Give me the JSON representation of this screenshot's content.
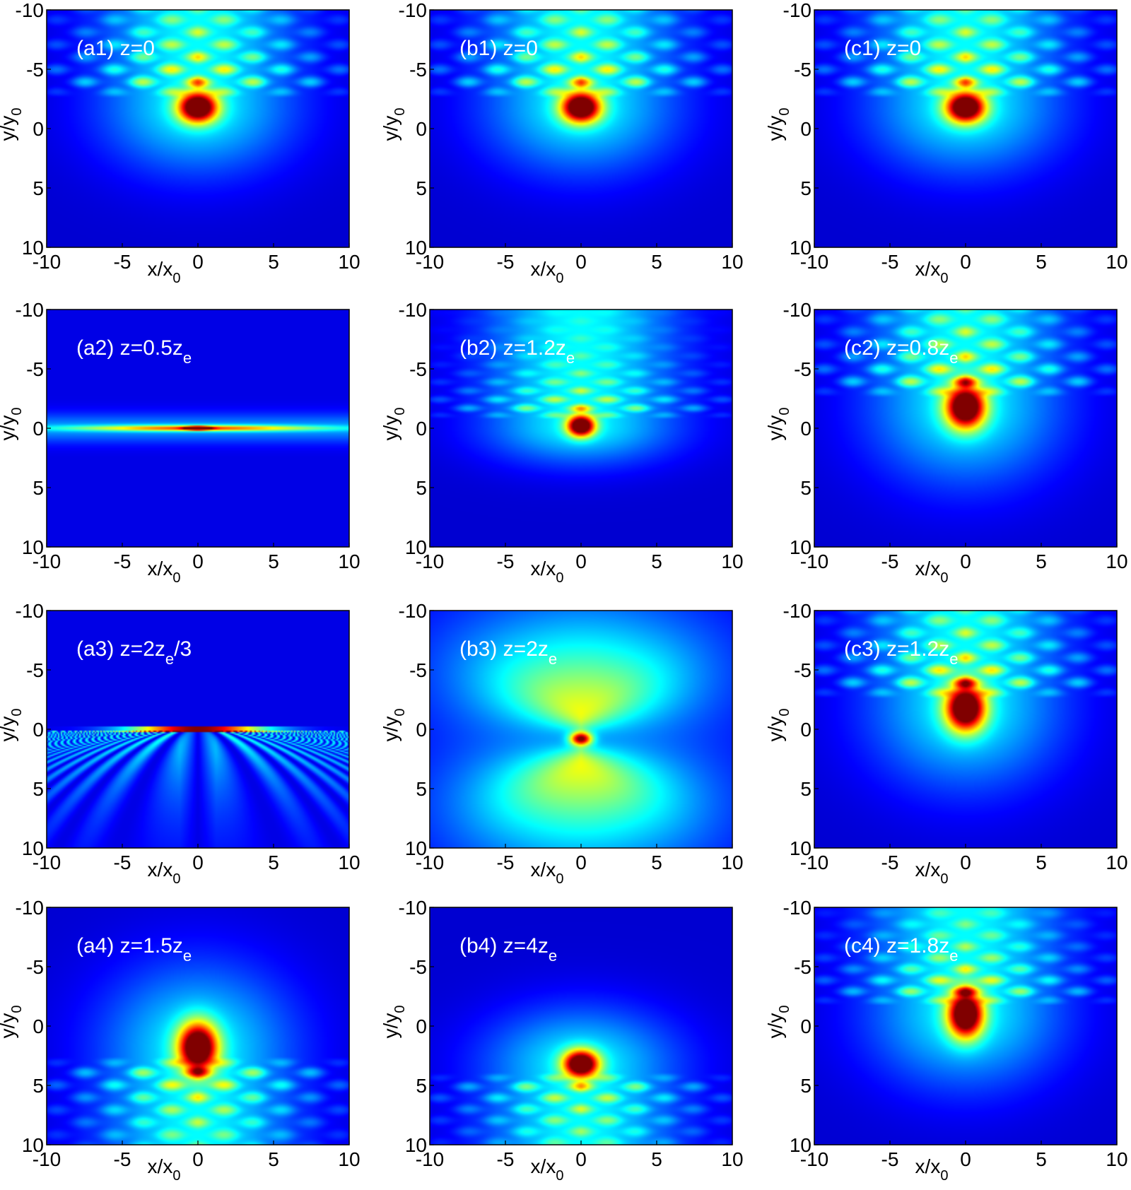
{
  "chart_data": {
    "type": "heatmap",
    "colormap": "jet",
    "grid": false,
    "layout": {
      "rows": 4,
      "cols": 3
    },
    "xlabel": {
      "main": "x/x",
      "sub": "0"
    },
    "ylabel": {
      "main": "y/y",
      "sub": "0"
    },
    "xlim": [
      -10,
      10
    ],
    "ylim": [
      -10,
      10
    ],
    "y_axis_direction": "down",
    "xticks": [
      "-10",
      "-5",
      "0",
      "5",
      "10"
    ],
    "yticks": [
      "-10",
      "-5",
      "0",
      "5",
      "10"
    ],
    "panels": [
      {
        "id": "a1",
        "label": "(a1) z=0",
        "label_parts": {
          "tag": "(a1)",
          "pre": "z=0",
          "sub": "",
          "post": ""
        },
        "pattern": "airy",
        "orientation": "up",
        "center_y": -1.8,
        "spread": 1.0,
        "fringe_strength": 1.0
      },
      {
        "id": "b1",
        "label": "(b1) z=0",
        "label_parts": {
          "tag": "(b1)",
          "pre": "z=0",
          "sub": "",
          "post": ""
        },
        "pattern": "airy",
        "orientation": "up",
        "center_y": -1.8,
        "spread": 1.0,
        "fringe_strength": 1.0
      },
      {
        "id": "c1",
        "label": "(c1) z=0",
        "label_parts": {
          "tag": "(c1)",
          "pre": "z=0",
          "sub": "",
          "post": ""
        },
        "pattern": "airy",
        "orientation": "up",
        "center_y": -1.8,
        "spread": 1.0,
        "fringe_strength": 1.0
      },
      {
        "id": "a2",
        "label": "(a2) z=0.5ze",
        "label_parts": {
          "tag": "(a2)",
          "pre": "z=0.5z",
          "sub": "e",
          "post": ""
        },
        "pattern": "line",
        "line_y": 0.0,
        "line_halfwidth": 1.2
      },
      {
        "id": "b2",
        "label": "(b2) z=1.2ze",
        "label_parts": {
          "tag": "(b2)",
          "pre": "z=1.2z",
          "sub": "e",
          "post": ""
        },
        "pattern": "airy",
        "orientation": "up",
        "center_y": -0.2,
        "spread": 0.7,
        "fringe_strength": 0.9
      },
      {
        "id": "c2",
        "label": "(c2) z=0.8ze",
        "label_parts": {
          "tag": "(c2)",
          "pre": "z=0.8z",
          "sub": "e",
          "post": ""
        },
        "pattern": "airy",
        "orientation": "up",
        "center_y": -1.8,
        "spread": 1.0,
        "fringe_strength": 1.0,
        "elongate": 1.4
      },
      {
        "id": "a3",
        "label": "(a3) z=2ze/3",
        "label_parts": {
          "tag": "(a3)",
          "pre": "z=2z",
          "sub": "e",
          "post": "/3"
        },
        "pattern": "fan",
        "line_y": 0.0,
        "line_halfwidth": 2.5
      },
      {
        "id": "b3",
        "label": "(b3) z=2ze",
        "label_parts": {
          "tag": "(b3)",
          "pre": "z=2z",
          "sub": "e",
          "post": ""
        },
        "pattern": "focus",
        "center_y": 0.8
      },
      {
        "id": "c3",
        "label": "(c3) z=1.2ze",
        "label_parts": {
          "tag": "(c3)",
          "pre": "z=1.2z",
          "sub": "e",
          "post": ""
        },
        "pattern": "airy",
        "orientation": "up",
        "center_y": -1.8,
        "spread": 1.0,
        "fringe_strength": 1.0,
        "elongate": 1.5
      },
      {
        "id": "a4",
        "label": "(a4) z=1.5ze",
        "label_parts": {
          "tag": "(a4)",
          "pre": "z=1.5z",
          "sub": "e",
          "post": ""
        },
        "pattern": "airy",
        "orientation": "down",
        "center_y": 1.8,
        "spread": 1.0,
        "fringe_strength": 0.9,
        "elongate": 1.6
      },
      {
        "id": "b4",
        "label": "(b4) z=4ze",
        "label_parts": {
          "tag": "(b4)",
          "pre": "z=4z",
          "sub": "e",
          "post": ""
        },
        "pattern": "airy",
        "orientation": "down",
        "center_y": 3.2,
        "spread": 0.9,
        "fringe_strength": 0.8
      },
      {
        "id": "c4",
        "label": "(c4) z=1.8ze",
        "label_parts": {
          "tag": "(c4)",
          "pre": "z=1.8z",
          "sub": "e",
          "post": ""
        },
        "pattern": "airy",
        "orientation": "up",
        "center_y": -1.0,
        "spread": 0.9,
        "fringe_strength": 0.9,
        "elongate": 1.7
      }
    ]
  }
}
